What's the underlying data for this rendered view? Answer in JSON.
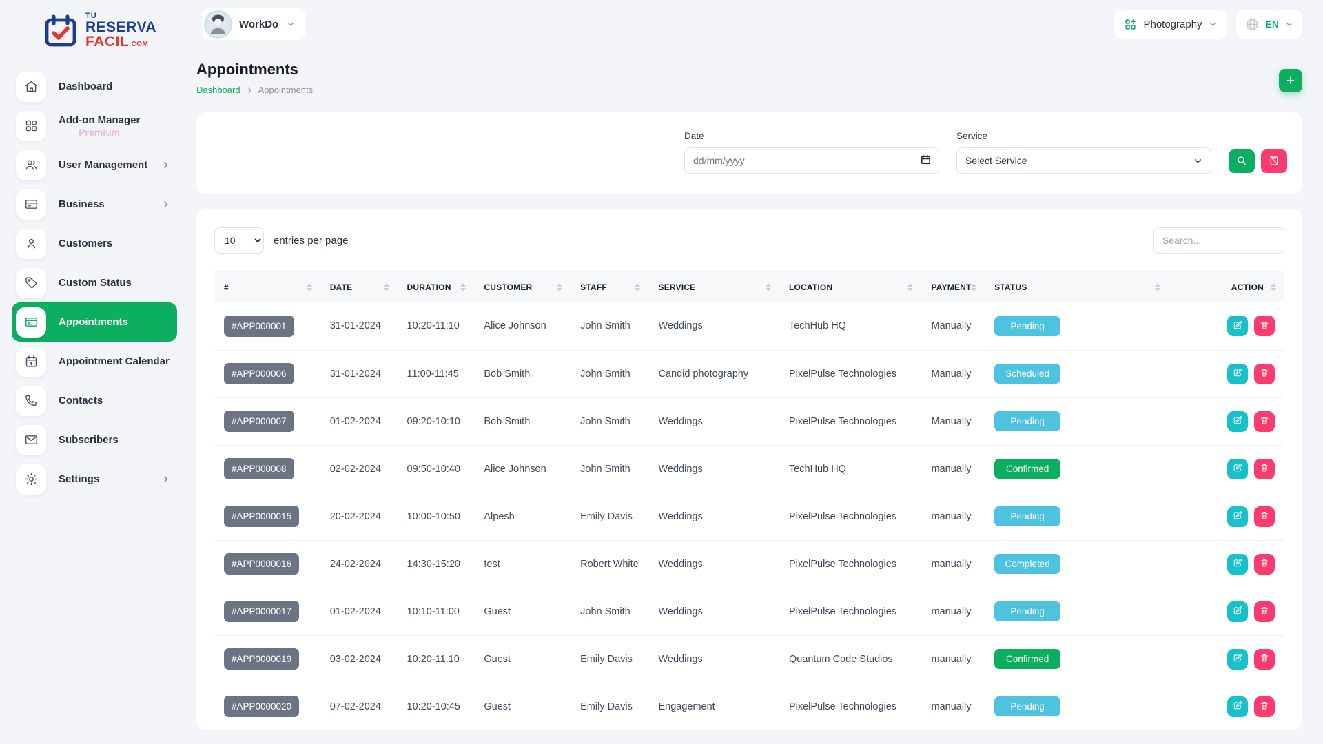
{
  "logo": {
    "line1": "TU",
    "line2": "RESERVA",
    "line3": "FACIL",
    "suffix": ".COM"
  },
  "topbar": {
    "workspace": "WorkDo",
    "module": "Photography",
    "language": "EN"
  },
  "sidebar": {
    "items": [
      {
        "label": "Dashboard",
        "icon": "home-icon",
        "active": false,
        "chevron": false,
        "sublabel": ""
      },
      {
        "label": "Add-on Manager",
        "icon": "grid-icon",
        "active": false,
        "chevron": false,
        "sublabel": "Premium"
      },
      {
        "label": "User Management",
        "icon": "users-icon",
        "active": false,
        "chevron": true,
        "sublabel": ""
      },
      {
        "label": "Business",
        "icon": "credit-card-icon",
        "active": false,
        "chevron": true,
        "sublabel": ""
      },
      {
        "label": "Customers",
        "icon": "user-icon",
        "active": false,
        "chevron": false,
        "sublabel": ""
      },
      {
        "label": "Custom Status",
        "icon": "tag-icon",
        "active": false,
        "chevron": false,
        "sublabel": ""
      },
      {
        "label": "Appointments",
        "icon": "appointments-icon",
        "active": true,
        "chevron": false,
        "sublabel": ""
      },
      {
        "label": "Appointment Calendar",
        "icon": "calendar-icon",
        "active": false,
        "chevron": false,
        "sublabel": ""
      },
      {
        "label": "Contacts",
        "icon": "phone-icon",
        "active": false,
        "chevron": false,
        "sublabel": ""
      },
      {
        "label": "Subscribers",
        "icon": "mail-icon",
        "active": false,
        "chevron": false,
        "sublabel": ""
      },
      {
        "label": "Settings",
        "icon": "gear-icon",
        "active": false,
        "chevron": true,
        "sublabel": ""
      }
    ]
  },
  "page": {
    "title": "Appointments",
    "breadcrumb": [
      "Dashboard",
      "Appointments"
    ]
  },
  "filters": {
    "date_label": "Date",
    "date_placeholder": "dd/mm/yyyy",
    "service_label": "Service",
    "service_value": "Select Service"
  },
  "table": {
    "entries_value": "10",
    "entries_label": "entries per page",
    "search_placeholder": "Search...",
    "columns": [
      "#",
      "DATE",
      "DURATION",
      "CUSTOMER",
      "STAFF",
      "SERVICE",
      "LOCATION",
      "PAYMENT",
      "STATUS",
      "ACTION"
    ],
    "rows": [
      {
        "id": "#APP000001",
        "date": "31-01-2024",
        "duration": "10:20-11:10",
        "customer": "Alice Johnson",
        "staff": "John Smith",
        "service": "Weddings",
        "location": "TechHub HQ",
        "payment": "Manually",
        "status": "Pending",
        "status_type": "info"
      },
      {
        "id": "#APP000006",
        "date": "31-01-2024",
        "duration": "11:00-11:45",
        "customer": "Bob Smith",
        "staff": "John Smith",
        "service": "Candid photography",
        "location": "PixelPulse Technologies",
        "payment": "Manually",
        "status": "Scheduled",
        "status_type": "info"
      },
      {
        "id": "#APP000007",
        "date": "01-02-2024",
        "duration": "09:20-10:10",
        "customer": "Bob Smith",
        "staff": "John Smith",
        "service": "Weddings",
        "location": "PixelPulse Technologies",
        "payment": "Manually",
        "status": "Pending",
        "status_type": "info"
      },
      {
        "id": "#APP000008",
        "date": "02-02-2024",
        "duration": "09:50-10:40",
        "customer": "Alice Johnson",
        "staff": "John Smith",
        "service": "Weddings",
        "location": "TechHub HQ",
        "payment": "manually",
        "status": "Confirmed",
        "status_type": "success"
      },
      {
        "id": "#APP0000015",
        "date": "20-02-2024",
        "duration": "10:00-10:50",
        "customer": "Alpesh",
        "staff": "Emily Davis",
        "service": "Weddings",
        "location": "PixelPulse Technologies",
        "payment": "manually",
        "status": "Pending",
        "status_type": "info"
      },
      {
        "id": "#APP0000016",
        "date": "24-02-2024",
        "duration": "14:30-15:20",
        "customer": "test",
        "staff": "Robert White",
        "service": "Weddings",
        "location": "PixelPulse Technologies",
        "payment": "manually",
        "status": "Completed",
        "status_type": "info"
      },
      {
        "id": "#APP0000017",
        "date": "01-02-2024",
        "duration": "10:10-11:00",
        "customer": "Guest",
        "staff": "John Smith",
        "service": "Weddings",
        "location": "PixelPulse Technologies",
        "payment": "manually",
        "status": "Pending",
        "status_type": "info"
      },
      {
        "id": "#APP0000019",
        "date": "03-02-2024",
        "duration": "10:20-11:10",
        "customer": "Guest",
        "staff": "Emily Davis",
        "service": "Weddings",
        "location": "Quantum Code Studios",
        "payment": "manually",
        "status": "Confirmed",
        "status_type": "success"
      },
      {
        "id": "#APP0000020",
        "date": "07-02-2024",
        "duration": "10:20-10:45",
        "customer": "Guest",
        "staff": "Emily Davis",
        "service": "Engagement",
        "location": "PixelPulse Technologies",
        "payment": "manually",
        "status": "Pending",
        "status_type": "info"
      }
    ]
  },
  "actions": {
    "add_label": "+",
    "edit_icon": "edit-icon",
    "delete_icon": "trash-icon",
    "search_icon": "search-icon",
    "reset_icon": "clipboard-off-icon"
  },
  "colors": {
    "accent_green": "#0caf60",
    "info_badge": "#4ec3e0",
    "pink": "#fa3b6d",
    "teal": "#17c1c9",
    "id_badge": "#6b7482"
  }
}
